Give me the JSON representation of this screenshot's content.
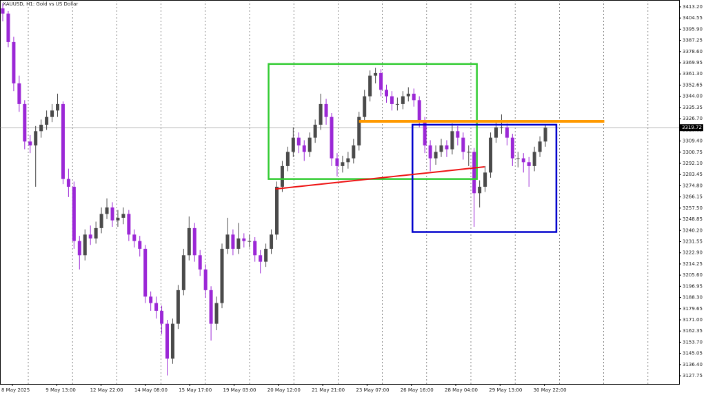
{
  "chart_data": {
    "type": "candlestick",
    "title": "XAUUSD, H1: Gold vs US Dollar",
    "x_labels": [
      "8 May 2025",
      "9 May 13:00",
      "12 May 22:00",
      "14 May 08:00",
      "15 May 17:00",
      "19 May 03:00",
      "20 May 12:00",
      "21 May 21:00",
      "23 May 07:00",
      "26 May 16:00",
      "28 May 04:00",
      "29 May 13:00",
      "30 May 22:00"
    ],
    "ohlc": [
      [
        3412,
        3416,
        3402,
        3408
      ],
      [
        3408,
        3410,
        3382,
        3386
      ],
      [
        3386,
        3390,
        3348,
        3354
      ],
      [
        3354,
        3360,
        3332,
        3338
      ],
      [
        3338,
        3341,
        3303,
        3309
      ],
      [
        3309,
        3314,
        3300,
        3306
      ],
      [
        3306,
        3321,
        3274,
        3317
      ],
      [
        3317,
        3326,
        3312,
        3322
      ],
      [
        3322,
        3333,
        3318,
        3328
      ],
      [
        3328,
        3338,
        3324,
        3333
      ],
      [
        3333,
        3346,
        3328,
        3338
      ],
      [
        3338,
        3340,
        3276,
        3280
      ],
      [
        3280,
        3288,
        3266,
        3274
      ],
      [
        3274,
        3278,
        3226,
        3232
      ],
      [
        3232,
        3236,
        3210,
        3221
      ],
      [
        3221,
        3241,
        3217,
        3237
      ],
      [
        3237,
        3244,
        3229,
        3234
      ],
      [
        3234,
        3247,
        3230,
        3242
      ],
      [
        3242,
        3258,
        3238,
        3253
      ],
      [
        3253,
        3265,
        3249,
        3258
      ],
      [
        3258,
        3262,
        3243,
        3248
      ],
      [
        3248,
        3256,
        3243,
        3250
      ],
      [
        3250,
        3258,
        3245,
        3253
      ],
      [
        3253,
        3256,
        3232,
        3237
      ],
      [
        3237,
        3241,
        3227,
        3232
      ],
      [
        3232,
        3236,
        3220,
        3226
      ],
      [
        3226,
        3229,
        3184,
        3189
      ],
      [
        3189,
        3193,
        3178,
        3184
      ],
      [
        3184,
        3189,
        3172,
        3178
      ],
      [
        3178,
        3182,
        3160,
        3168
      ],
      [
        3168,
        3171,
        3128,
        3141
      ],
      [
        3141,
        3172,
        3137,
        3168
      ],
      [
        3168,
        3198,
        3164,
        3194
      ],
      [
        3194,
        3226,
        3190,
        3221
      ],
      [
        3221,
        3251,
        3217,
        3242
      ],
      [
        3242,
        3246,
        3216,
        3221
      ],
      [
        3221,
        3225,
        3205,
        3210
      ],
      [
        3210,
        3214,
        3188,
        3194
      ],
      [
        3194,
        3197,
        3155,
        3168
      ],
      [
        3168,
        3189,
        3163,
        3184
      ],
      [
        3184,
        3230,
        3180,
        3226
      ],
      [
        3226,
        3250,
        3222,
        3237
      ],
      [
        3237,
        3241,
        3221,
        3226
      ],
      [
        3226,
        3246,
        3222,
        3234
      ],
      [
        3234,
        3238,
        3227,
        3232
      ],
      [
        3232,
        3237,
        3227,
        3232
      ],
      [
        3232,
        3235,
        3216,
        3221
      ],
      [
        3221,
        3225,
        3207,
        3216
      ],
      [
        3216,
        3230,
        3212,
        3226
      ],
      [
        3226,
        3241,
        3222,
        3237
      ],
      [
        3237,
        3278,
        3233,
        3274
      ],
      [
        3274,
        3294,
        3270,
        3290
      ],
      [
        3290,
        3305,
        3286,
        3301
      ],
      [
        3301,
        3320,
        3297,
        3312
      ],
      [
        3312,
        3316,
        3300,
        3306
      ],
      [
        3306,
        3310,
        3294,
        3301
      ],
      [
        3301,
        3316,
        3297,
        3312
      ],
      [
        3312,
        3326,
        3308,
        3322
      ],
      [
        3322,
        3346,
        3318,
        3338
      ],
      [
        3338,
        3342,
        3322,
        3328
      ],
      [
        3328,
        3331,
        3290,
        3296
      ],
      [
        3296,
        3300,
        3282,
        3290
      ],
      [
        3290,
        3298,
        3285,
        3293
      ],
      [
        3293,
        3301,
        3288,
        3296
      ],
      [
        3296,
        3311,
        3292,
        3306
      ],
      [
        3306,
        3332,
        3302,
        3328
      ],
      [
        3328,
        3349,
        3324,
        3344
      ],
      [
        3344,
        3364,
        3340,
        3360
      ],
      [
        3360,
        3366,
        3354,
        3362
      ],
      [
        3362,
        3365,
        3344,
        3349
      ],
      [
        3349,
        3353,
        3339,
        3344
      ],
      [
        3344,
        3348,
        3333,
        3338
      ],
      [
        3338,
        3343,
        3333,
        3338
      ],
      [
        3338,
        3348,
        3334,
        3344
      ],
      [
        3344,
        3351,
        3340,
        3346
      ],
      [
        3346,
        3350,
        3336,
        3341
      ],
      [
        3341,
        3344,
        3320,
        3325
      ],
      [
        3325,
        3328,
        3300,
        3306
      ],
      [
        3306,
        3310,
        3286,
        3296
      ],
      [
        3296,
        3306,
        3291,
        3301
      ],
      [
        3301,
        3311,
        3297,
        3306
      ],
      [
        3306,
        3310,
        3297,
        3303
      ],
      [
        3303,
        3323,
        3299,
        3317
      ],
      [
        3317,
        3321,
        3306,
        3312
      ],
      [
        3312,
        3316,
        3295,
        3301
      ],
      [
        3301,
        3306,
        3290,
        3301
      ],
      [
        3301,
        3304,
        3243,
        3269
      ],
      [
        3269,
        3279,
        3258,
        3274
      ],
      [
        3274,
        3290,
        3270,
        3285
      ],
      [
        3285,
        3316,
        3281,
        3312
      ],
      [
        3312,
        3324,
        3308,
        3320
      ],
      [
        3320,
        3330,
        3315,
        3320
      ],
      [
        3320,
        3323,
        3306,
        3312
      ],
      [
        3312,
        3315,
        3290,
        3296
      ],
      [
        3296,
        3301,
        3289,
        3296
      ],
      [
        3296,
        3300,
        3285,
        3293
      ],
      [
        3293,
        3297,
        3274,
        3290
      ],
      [
        3290,
        3305,
        3286,
        3301
      ],
      [
        3301,
        3313,
        3297,
        3309
      ],
      [
        3309,
        3322,
        3305,
        3319.72
      ]
    ],
    "up_color": "#4a4a4a",
    "down_color": "#9b27d6",
    "ylim": [
      3121.4,
      3418.5
    ],
    "yticks": [
      {
        "value": 3413.2,
        "label": "3413.20"
      },
      {
        "value": 3404.55,
        "label": "3404.55"
      },
      {
        "value": 3395.9,
        "label": "3395.90"
      },
      {
        "value": 3387.25,
        "label": "3387.25"
      },
      {
        "value": 3378.6,
        "label": "3378.60"
      },
      {
        "value": 3369.95,
        "label": "3369.95"
      },
      {
        "value": 3361.3,
        "label": "3361.30"
      },
      {
        "value": 3352.65,
        "label": "3352.65"
      },
      {
        "value": 3344,
        "label": "3344.00"
      },
      {
        "value": 3335.35,
        "label": "3335.35"
      },
      {
        "value": 3326.7,
        "label": "3326.70"
      },
      {
        "value": 3318.05,
        "label": "3318.05"
      },
      {
        "value": 3309.4,
        "label": "3309.40"
      },
      {
        "value": 3300.75,
        "label": "3300.75"
      },
      {
        "value": 3292.1,
        "label": "3292.10"
      },
      {
        "value": 3283.45,
        "label": "3283.45"
      },
      {
        "value": 3274.8,
        "label": "3274.80"
      },
      {
        "value": 3266.15,
        "label": "3266.15"
      },
      {
        "value": 3257.5,
        "label": "3257.50"
      },
      {
        "value": 3248.85,
        "label": "3248.85"
      },
      {
        "value": 3240.2,
        "label": "3240.20"
      },
      {
        "value": 3231.55,
        "label": "3231.55"
      },
      {
        "value": 3222.9,
        "label": "3222.90"
      },
      {
        "value": 3214.25,
        "label": "3214.25"
      },
      {
        "value": 3205.6,
        "label": "3205.60"
      },
      {
        "value": 3196.95,
        "label": "3196.95"
      },
      {
        "value": 3188.3,
        "label": "3188.30"
      },
      {
        "value": 3179.65,
        "label": "3179.65"
      },
      {
        "value": 3171,
        "label": "3171.00"
      },
      {
        "value": 3162.35,
        "label": "3162.35"
      },
      {
        "value": 3153.7,
        "label": "3153.70"
      },
      {
        "value": 3145.05,
        "label": "3145.05"
      },
      {
        "value": 3136.4,
        "label": "3136.40"
      },
      {
        "value": 3127.75,
        "label": "3127.75"
      }
    ],
    "last_price": 3319.72,
    "rectangles": [
      {
        "color": "#33cc33",
        "x": [
          48.5,
          86.5
        ],
        "y": [
          3369,
          3280
        ]
      },
      {
        "color": "#0000cc",
        "x": [
          74.75,
          101
        ],
        "y": [
          3322,
          3239
        ]
      }
    ],
    "lines": [
      {
        "color": "#ff9900",
        "x": [
          65,
          109.75
        ],
        "y": [
          3324.6,
          3324.6
        ]
      },
      {
        "color": "#ee1111",
        "x": [
          49.75,
          87.9
        ],
        "y": [
          3272.3,
          3289.4
        ]
      }
    ]
  }
}
